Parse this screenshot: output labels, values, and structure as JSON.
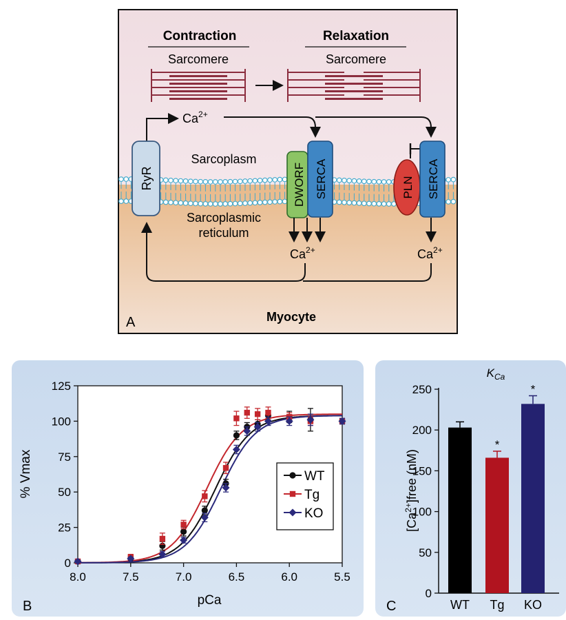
{
  "panel_a": {
    "label": "A",
    "contraction_title": "Contraction",
    "relaxation_title": "Relaxation",
    "sarcomere_label_left": "Sarcomere",
    "sarcomere_label_right": "Sarcomere",
    "ca_top": "Ca",
    "ca_top_sup": "2+",
    "ca_mid": "Ca",
    "ca_mid_sup": "2+",
    "ca_right": "Ca",
    "ca_right_sup": "2+",
    "sarcoplasm": "Sarcoplasm",
    "sr_line1": "Sarcoplasmic",
    "sr_line2": "reticulum",
    "myocyte": "Myocyte",
    "ryr": "RyR",
    "dworf": "DWORF",
    "serca_mid": "SERCA",
    "pln": "PLN",
    "serca_right": "SERCA",
    "colors": {
      "cytosol": "#f2e2e6",
      "sr_lumen": "#e9c69d",
      "ryr": "#c9d9e8",
      "serca": "#3d82bf",
      "dworf": "#8cc465",
      "pln": "#d9403a",
      "sarcomere": "#8b2d3e",
      "membrane": "#3fa8cc"
    }
  },
  "panel_b": {
    "label": "B",
    "chart_data": {
      "type": "line",
      "xlabel": "pCa",
      "ylabel": "% Vmax",
      "xlim": [
        8.0,
        5.5
      ],
      "ylim": [
        0,
        125
      ],
      "x_reversed": true,
      "xticks": [
        "8.0",
        "7.5",
        "7.0",
        "6.5",
        "6.0",
        "5.5"
      ],
      "yticks": [
        "0",
        "25",
        "50",
        "75",
        "100",
        "125"
      ],
      "legend_placement": "center-right",
      "x": [
        8.0,
        7.5,
        7.2,
        7.0,
        6.8,
        6.6,
        6.5,
        6.4,
        6.3,
        6.2,
        6.0,
        5.8,
        5.5
      ],
      "series": [
        {
          "name": "WT",
          "color": "#111111",
          "marker": "circle",
          "values": [
            1,
            3,
            12,
            22,
            37,
            56,
            90,
            96,
            98,
            104,
            103,
            101,
            100
          ],
          "errors": [
            1,
            1,
            3,
            3,
            3,
            3,
            3,
            3,
            3,
            3,
            4,
            8,
            2
          ],
          "fit_pca50": 6.7,
          "fit_hill": 2.6,
          "fit_max": 104
        },
        {
          "name": "Tg",
          "color": "#c4272d",
          "marker": "square",
          "values": [
            1,
            4,
            17,
            27,
            47,
            67,
            102,
            106,
            105,
            106,
            103,
            100,
            100
          ],
          "errors": [
            1,
            2,
            4,
            3,
            4,
            4,
            5,
            4,
            4,
            4,
            3,
            3,
            2
          ],
          "fit_pca50": 6.78,
          "fit_hill": 2.6,
          "fit_max": 105
        },
        {
          "name": "KO",
          "color": "#2b2a7c",
          "marker": "diamond",
          "values": [
            1,
            3,
            6,
            16,
            32,
            53,
            80,
            93,
            96,
            100,
            100,
            101,
            100
          ],
          "errors": [
            1,
            1,
            2,
            2,
            3,
            3,
            3,
            3,
            3,
            3,
            3,
            4,
            2
          ],
          "fit_pca50": 6.65,
          "fit_hill": 2.6,
          "fit_max": 104
        }
      ]
    }
  },
  "panel_c": {
    "label": "C",
    "chart_data": {
      "type": "bar",
      "title": "K",
      "title_sub": "Ca",
      "ylabel_pre": "[Ca",
      "ylabel_sup": "2+",
      "ylabel_post": "]free (nM)",
      "ylim": [
        0,
        250
      ],
      "yticks": [
        "0",
        "50",
        "100",
        "150",
        "200",
        "250"
      ],
      "categories": [
        "WT",
        "Tg",
        "KO"
      ],
      "values": [
        203,
        166,
        232
      ],
      "errors": [
        7,
        8,
        10
      ],
      "colors": [
        "#000000",
        "#b1141f",
        "#242270"
      ],
      "significance": [
        "",
        "*",
        "*"
      ]
    }
  }
}
